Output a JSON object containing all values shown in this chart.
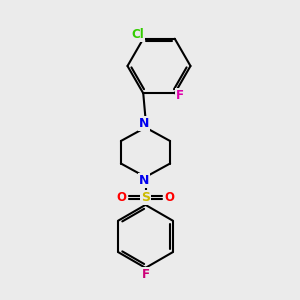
{
  "background_color": "#ebebeb",
  "bond_color": "#000000",
  "N_color": "#0000ee",
  "Cl_color": "#33cc00",
  "F_color_top": "#dd00aa",
  "F_color_bottom": "#cc0077",
  "S_color": "#ccbb00",
  "O_color": "#ff0000",
  "bond_width": 1.5,
  "figsize": [
    3.0,
    3.0
  ],
  "dpi": 100,
  "xlim": [
    0,
    10
  ],
  "ylim": [
    0,
    10
  ]
}
